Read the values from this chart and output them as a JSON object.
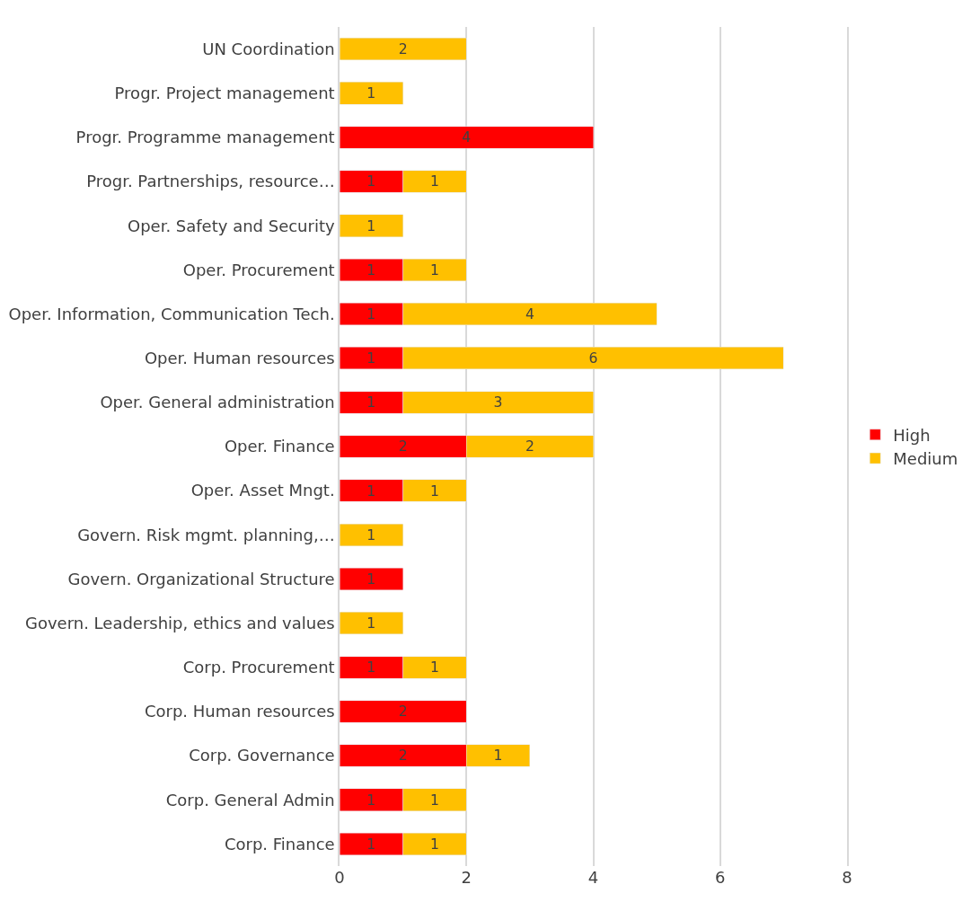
{
  "chart_data": {
    "type": "bar",
    "orientation": "horizontal",
    "stacked": true,
    "data_labels": true,
    "grid": "x",
    "legend": "right",
    "categories": [
      "UN Coordination",
      "Progr. Project management",
      "Progr. Programme management",
      "Progr. Partnerships, resource…",
      "Oper. Safety and Security",
      "Oper. Procurement",
      "Oper. Information, Communication Tech.",
      "Oper. Human resources",
      "Oper. General administration",
      "Oper. Finance",
      "Oper. Asset Mngt.",
      "Govern. Risk mgmt. planning,…",
      "Govern. Organizational Structure",
      "Govern. Leadership, ethics and values",
      "Corp. Procurement",
      "Corp. Human resources",
      "Corp. Governance",
      "Corp. General Admin",
      "Corp. Finance"
    ],
    "series": [
      {
        "name": "High",
        "color": "#ff0000",
        "values": [
          null,
          null,
          4,
          1,
          null,
          1,
          1,
          1,
          1,
          2,
          1,
          null,
          1,
          null,
          1,
          2,
          2,
          1,
          1
        ]
      },
      {
        "name": "Medium",
        "color": "#ffc000",
        "values": [
          2,
          1,
          null,
          1,
          1,
          1,
          4,
          6,
          3,
          2,
          1,
          1,
          null,
          1,
          1,
          null,
          1,
          1,
          1
        ]
      }
    ],
    "xlim": [
      0,
      8
    ],
    "xticks": [
      0,
      2,
      4,
      6,
      8
    ]
  }
}
